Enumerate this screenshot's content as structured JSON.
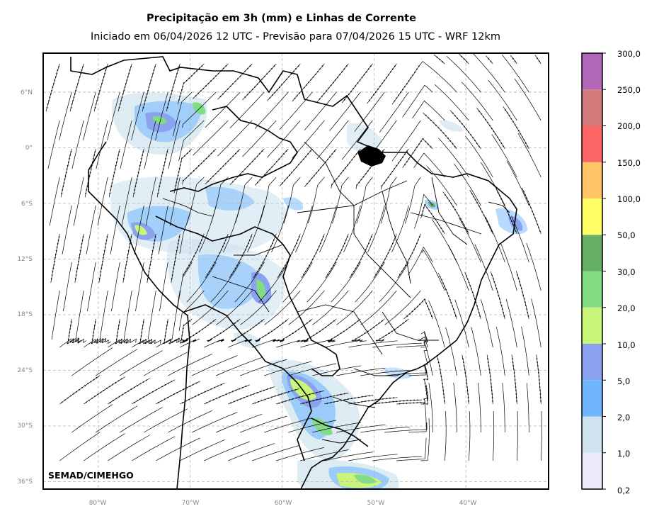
{
  "header": {
    "title": "Precipitação em 3h (mm) e Linhas de Corrente",
    "subtitle": "Iniciado em 06/04/2026 12 UTC - Previsão para 07/04/2026 15 UTC - WRF 12km"
  },
  "map": {
    "lat_labels": [
      "6°N",
      "0°",
      "6°S",
      "12°S",
      "18°S",
      "24°S",
      "30°S",
      "36°S"
    ],
    "lon_labels": [
      "80°W",
      "70°W",
      "60°W",
      "50°W",
      "40°W"
    ],
    "extent_lon": [
      -86,
      -31
    ],
    "extent_lat": [
      -36.8,
      10.2
    ],
    "gridlines": true,
    "watermark": "SEMAD/CIMEHGO",
    "precip_areas": [
      {
        "name": "northwest-andes",
        "level": "5,0"
      },
      {
        "name": "amazon-west",
        "level": "10,0"
      },
      {
        "name": "rondonia-mato-grosso",
        "level": "20,0"
      },
      {
        "name": "paraguay-parana",
        "level": "30,0"
      },
      {
        "name": "uruguay-rio-grande-do-sul",
        "level": "20,0"
      },
      {
        "name": "nordeste-coast",
        "level": "5,0"
      },
      {
        "name": "para-coast",
        "level": "2,0"
      }
    ]
  },
  "colorbar": {
    "labels": [
      "0,2",
      "1,0",
      "2,0",
      "5,0",
      "10,0",
      "20,0",
      "30,0",
      "50,0",
      "100,0",
      "150,0",
      "200,0",
      "250,0",
      "300,0"
    ],
    "colors": [
      "#ececfb",
      "#cfe3ee",
      "#6fb6ff",
      "#8aa2ef",
      "#c8f57a",
      "#82dc84",
      "#66af66",
      "#ffff66",
      "#ffc466",
      "#ff6666",
      "#d47a7a",
      "#b266b8"
    ]
  }
}
